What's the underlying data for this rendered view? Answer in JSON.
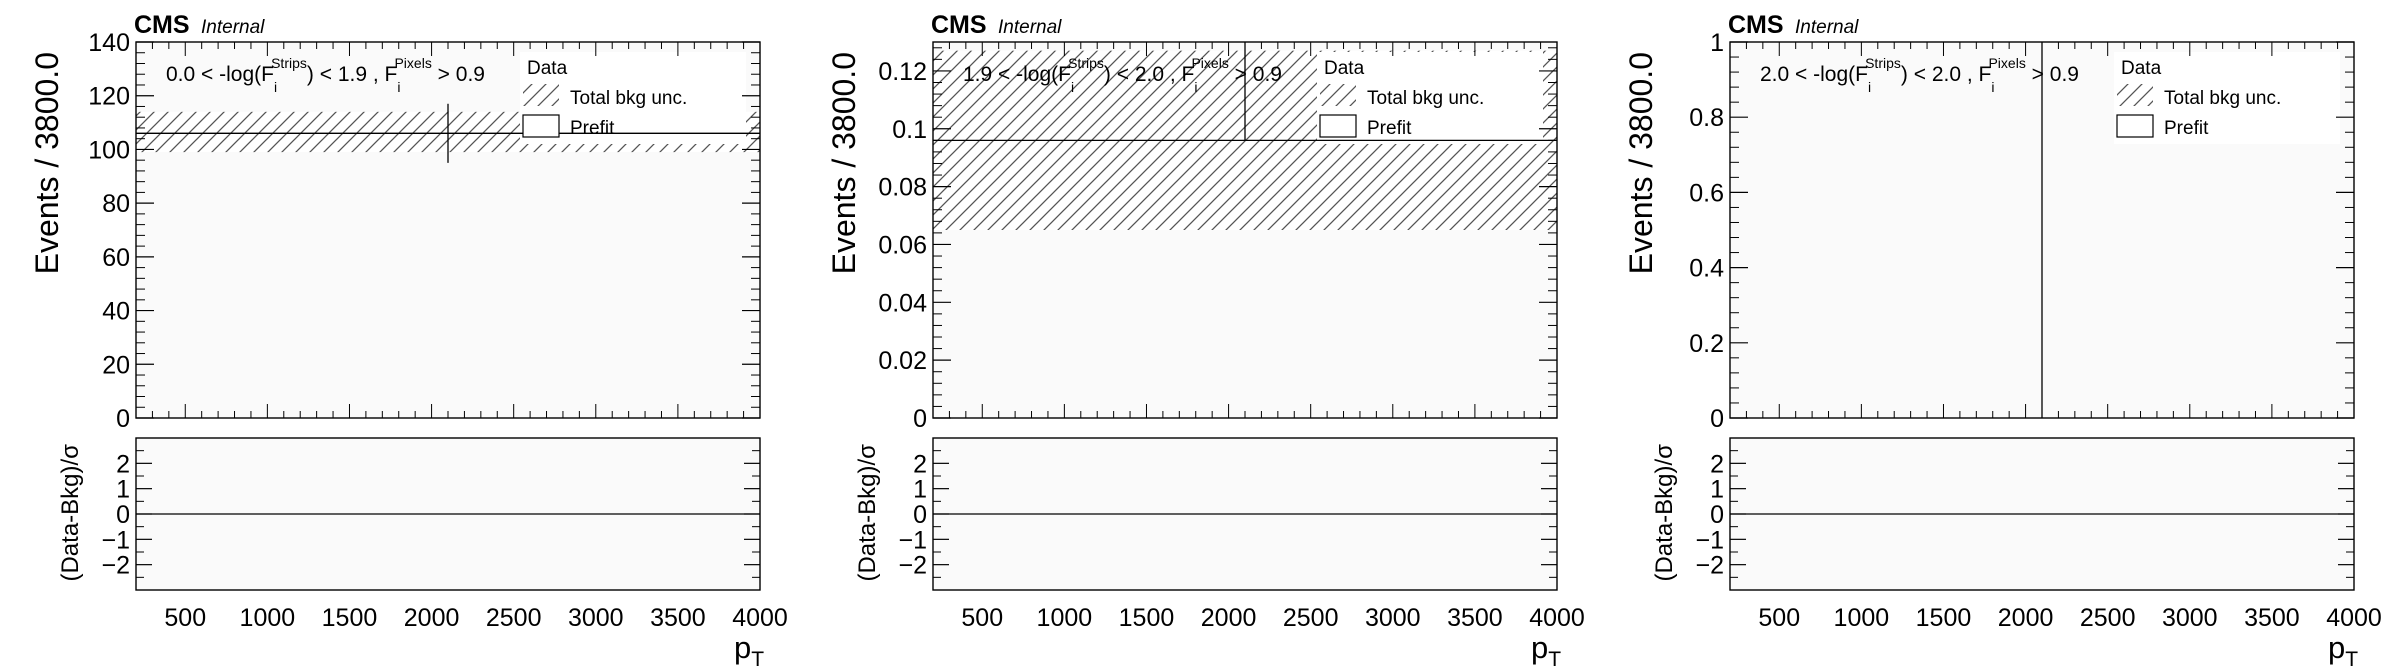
{
  "chart_data": [
    {
      "type": "bar",
      "cms_label": "CMS",
      "cms_sublabel": "Internal",
      "region_label": "0.0 < -log(F_i^Strips) < 1.9 , F_i^Pixels > 0.9",
      "region": {
        "pre": "0.0 < -log(F",
        "sub1": "i",
        "sup1": "Strips",
        "mid": ") < 1.9 , F",
        "sub2": "i",
        "sup2": "Pixels",
        "post": " > 0.9"
      },
      "legend": [
        "Data",
        "Total bkg unc.",
        "Prefit"
      ],
      "ylabel": "Events / 3800.0",
      "ratio_ylabel": "(Data-Bkg)/σ",
      "xlabel": "p_T",
      "xlabel_main": "p",
      "xlabel_sub": "T",
      "xlim": [
        200,
        4000
      ],
      "ylim": [
        0,
        140
      ],
      "yticks": [
        0,
        20,
        40,
        60,
        80,
        100,
        120,
        140
      ],
      "ytick_labels": [
        "0",
        "20",
        "40",
        "60",
        "80",
        "100",
        "120",
        "140"
      ],
      "xticks": [
        500,
        1000,
        1500,
        2000,
        2500,
        3000,
        3500,
        4000
      ],
      "xtick_labels": [
        "500",
        "1000",
        "1500",
        "2000",
        "2500",
        "3000",
        "3500",
        "4000"
      ],
      "ratio_ylim": [
        -3,
        3
      ],
      "ratio_yticks": [
        -2,
        -1,
        0,
        1,
        2
      ],
      "ratio_ytick_labels": [
        "−2",
        "−1",
        "0",
        "1",
        "2"
      ],
      "bin": [
        200,
        4000
      ],
      "prefit": 106,
      "unc": [
        99,
        114
      ],
      "data": {
        "x": 2100,
        "y": 106,
        "yerr": [
          95,
          117
        ]
      },
      "pull": 0
    },
    {
      "type": "bar",
      "cms_label": "CMS",
      "cms_sublabel": "Internal",
      "region_label": "1.9 < -log(F_i^Strips) < 2.0 , F_i^Pixels > 0.9",
      "region": {
        "pre": "1.9 < -log(F",
        "sub1": "i",
        "sup1": "Strips",
        "mid": ") < 2.0 , F",
        "sub2": "i",
        "sup2": "Pixels",
        "post": " > 0.9"
      },
      "legend": [
        "Data",
        "Total bkg unc.",
        "Prefit"
      ],
      "ylabel": "Events / 3800.0",
      "ratio_ylabel": "(Data-Bkg)/σ",
      "xlabel": "p_T",
      "xlabel_main": "p",
      "xlabel_sub": "T",
      "xlim": [
        200,
        4000
      ],
      "ylim": [
        0,
        0.13
      ],
      "yticks": [
        0,
        0.02,
        0.04,
        0.06,
        0.08,
        0.1,
        0.12
      ],
      "ytick_labels": [
        "0",
        "0.02",
        "0.04",
        "0.06",
        "0.08",
        "0.1",
        "0.12"
      ],
      "xticks": [
        500,
        1000,
        1500,
        2000,
        2500,
        3000,
        3500,
        4000
      ],
      "xtick_labels": [
        "500",
        "1000",
        "1500",
        "2000",
        "2500",
        "3000",
        "3500",
        "4000"
      ],
      "ratio_ylim": [
        -3,
        3
      ],
      "ratio_yticks": [
        -2,
        -1,
        0,
        1,
        2
      ],
      "ratio_ytick_labels": [
        "−2",
        "−1",
        "0",
        "1",
        "2"
      ],
      "bin": [
        200,
        4000
      ],
      "prefit": 0.096,
      "unc": [
        0.065,
        0.127
      ],
      "data": {
        "x": 2100,
        "y": 0.096,
        "yerr": [
          0.096,
          0.13
        ]
      },
      "pull": 0
    },
    {
      "type": "bar",
      "cms_label": "CMS",
      "cms_sublabel": "Internal",
      "region_label": "2.0 < -log(F_i^Strips) < 2.0 , F_i^Pixels > 0.9",
      "region": {
        "pre": "2.0 < -log(F",
        "sub1": "i",
        "sup1": "Strips",
        "mid": ") < 2.0 , F",
        "sub2": "i",
        "sup2": "Pixels",
        "post": " > 0.9"
      },
      "legend": [
        "Data",
        "Total bkg unc.",
        "Prefit"
      ],
      "ylabel": "Events / 3800.0",
      "ratio_ylabel": "(Data-Bkg)/σ",
      "xlabel": "p_T",
      "xlabel_main": "p",
      "xlabel_sub": "T",
      "xlim": [
        200,
        4000
      ],
      "ylim": [
        0,
        1
      ],
      "yticks": [
        0,
        0.2,
        0.4,
        0.6,
        0.8,
        1
      ],
      "ytick_labels": [
        "0",
        "0.2",
        "0.4",
        "0.6",
        "0.8",
        "1"
      ],
      "xticks": [
        500,
        1000,
        1500,
        2000,
        2500,
        3000,
        3500,
        4000
      ],
      "xtick_labels": [
        "500",
        "1000",
        "1500",
        "2000",
        "2500",
        "3000",
        "3500",
        "4000"
      ],
      "ratio_ylim": [
        -3,
        3
      ],
      "ratio_yticks": [
        -2,
        -1,
        0,
        1,
        2
      ],
      "ratio_ytick_labels": [
        "−2",
        "−1",
        "0",
        "1",
        "2"
      ],
      "bin": [
        200,
        4000
      ],
      "prefit": 0,
      "unc": [
        0,
        0
      ],
      "data": {
        "x": 2100,
        "y": 0,
        "yerr": [
          0,
          1
        ]
      },
      "pull": 0
    }
  ]
}
